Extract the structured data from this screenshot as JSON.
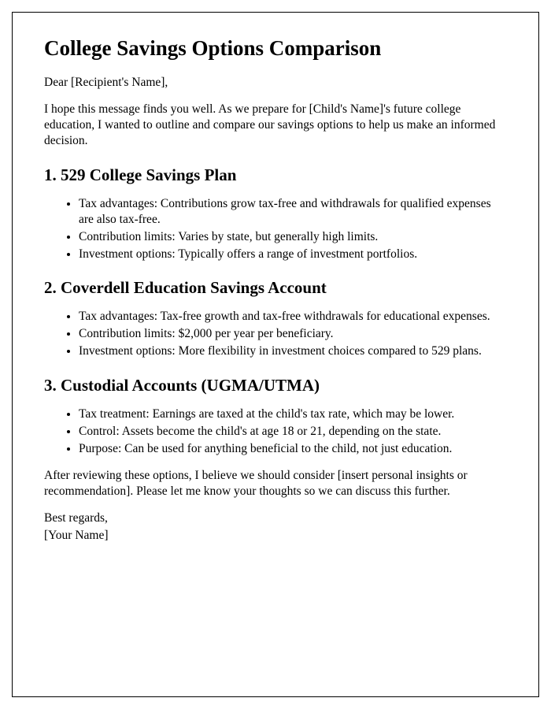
{
  "title": "College Savings Options Comparison",
  "greeting": "Dear [Recipient's Name],",
  "intro": "I hope this message finds you well. As we prepare for [Child's Name]'s future college education, I wanted to outline and compare our savings options to help us make an informed decision.",
  "sections": [
    {
      "heading": "1. 529 College Savings Plan",
      "bullets": [
        "Tax advantages: Contributions grow tax-free and withdrawals for qualified expenses are also tax-free.",
        "Contribution limits: Varies by state, but generally high limits.",
        "Investment options: Typically offers a range of investment portfolios."
      ]
    },
    {
      "heading": "2. Coverdell Education Savings Account",
      "bullets": [
        "Tax advantages: Tax-free growth and tax-free withdrawals for educational expenses.",
        "Contribution limits: $2,000 per year per beneficiary.",
        "Investment options: More flexibility in investment choices compared to 529 plans."
      ]
    },
    {
      "heading": "3. Custodial Accounts (UGMA/UTMA)",
      "bullets": [
        "Tax treatment: Earnings are taxed at the child's tax rate, which may be lower.",
        "Control: Assets become the child's at age 18 or 21, depending on the state.",
        "Purpose: Can be used for anything beneficial to the child, not just education."
      ]
    }
  ],
  "outro": "After reviewing these options, I believe we should consider [insert personal insights or recommendation]. Please let me know your thoughts so we can discuss this further.",
  "closing": "Best regards,",
  "signature": "[Your Name]"
}
